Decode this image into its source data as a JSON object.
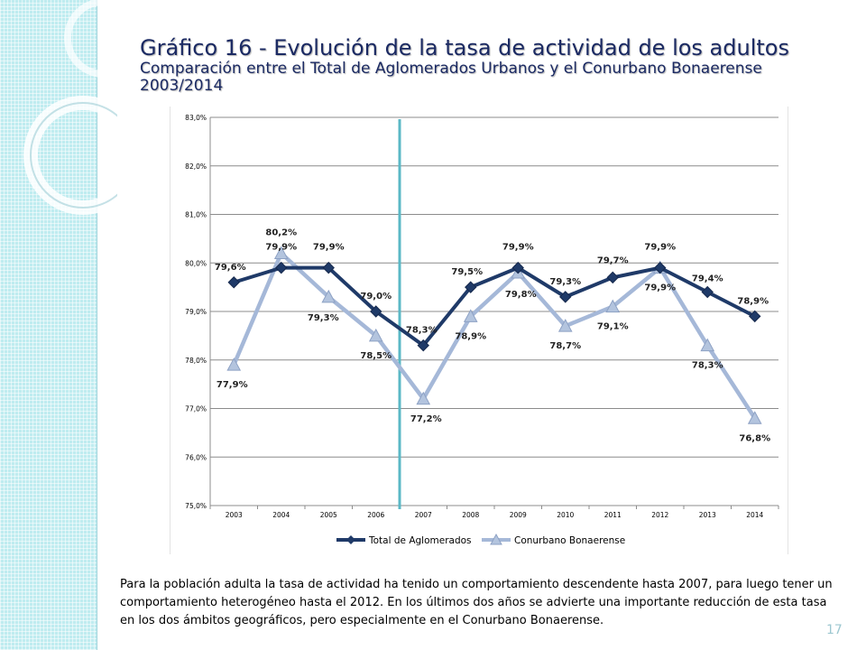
{
  "slide": {
    "title": "Gráfico 16 - Evolución de la tasa de actividad de los adultos",
    "subtitle_line1": "Comparación entre el Total de Aglomerados Urbanos y el Conurbano Bonaerense",
    "subtitle_line2": "2003/2014",
    "body_text": "Para la población adulta la tasa de actividad ha tenido un comportamiento descendente hasta 2007, para luego tener un comportamiento heterogéneo hasta el 2012. En los últimos dos años se advierte una importante reducción de esta tasa en los dos ámbitos geográficos, pero especialmente en el Conurbano Bonaerense.",
    "page_number": "17",
    "accent_color": "#5bb8c6",
    "title_color": "#1b2a63"
  },
  "chart_data": {
    "type": "line",
    "categories": [
      "2003",
      "2004",
      "2005",
      "2006",
      "2007",
      "2008",
      "2009",
      "2010",
      "2011",
      "2012",
      "2013",
      "2014"
    ],
    "ylim": [
      75.0,
      83.0
    ],
    "yticks": [
      "75,0%",
      "76,0%",
      "77,0%",
      "78,0%",
      "79,0%",
      "80,0%",
      "81,0%",
      "82,0%",
      "83,0%"
    ],
    "grid": true,
    "legend": "bottom",
    "reference_line_between": [
      "2006",
      "2007"
    ],
    "series": [
      {
        "name": "Total de Aglomerados",
        "color": "#1f3a68",
        "marker": "diamond",
        "values": [
          79.6,
          79.9,
          79.9,
          79.0,
          78.3,
          79.5,
          79.9,
          79.3,
          79.7,
          79.9,
          79.4,
          78.9
        ],
        "labels": [
          "79,6%",
          "79,9%",
          "79,9%",
          "79,0%",
          "78,3%",
          "79,5%",
          "79,9%",
          "79,3%",
          "79,7%",
          "79,9%",
          "79,4%",
          "78,9%"
        ]
      },
      {
        "name": "Conurbano Bonaerense",
        "color": "#a5b8d8",
        "marker": "triangle",
        "values": [
          77.9,
          80.2,
          79.3,
          78.5,
          77.2,
          78.9,
          79.8,
          78.7,
          79.1,
          79.9,
          78.3,
          76.8
        ],
        "labels": [
          "77,9%",
          "80,2%",
          "79,3%",
          "78,5%",
          "77,2%",
          "78,9%",
          "79,8%",
          "78,7%",
          "79,1%",
          "79,9%",
          "78,3%",
          "76,8%"
        ]
      }
    ]
  }
}
